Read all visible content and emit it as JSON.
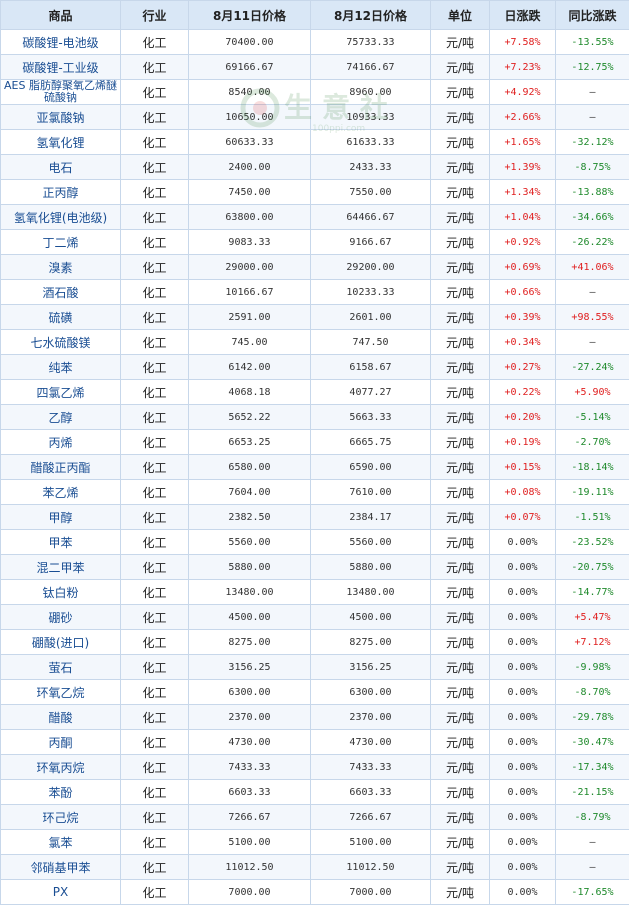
{
  "headers": {
    "name": "商品",
    "industry": "行业",
    "price_day1": "8月11日价格",
    "price_day2": "8月12日价格",
    "unit": "单位",
    "daily_change": "日涨跌",
    "yoy_change": "同比涨跌"
  },
  "watermark": {
    "text": "生意社",
    "url": "100ppi.com"
  },
  "colors": {
    "up": "#e02020",
    "down": "#1f8a2c",
    "header_bg": "#d9e7f6",
    "name_link": "#1a4e93"
  },
  "rows": [
    {
      "name": "碳酸锂-电池级",
      "industry": "化工",
      "p1": "70400.00",
      "p2": "75733.33",
      "unit": "元/吨",
      "daily": "+7.58%",
      "yoy": "-13.55%"
    },
    {
      "name": "碳酸锂-工业级",
      "industry": "化工",
      "p1": "69166.67",
      "p2": "74166.67",
      "unit": "元/吨",
      "daily": "+7.23%",
      "yoy": "-12.75%"
    },
    {
      "name": "AES 脂肪醇聚氧乙烯醚硫酸钠",
      "industry": "化工",
      "p1": "8540.00",
      "p2": "8960.00",
      "unit": "元/吨",
      "daily": "+4.92%",
      "yoy": "—"
    },
    {
      "name": "亚氯酸钠",
      "industry": "化工",
      "p1": "10650.00",
      "p2": "10933.33",
      "unit": "元/吨",
      "daily": "+2.66%",
      "yoy": "—"
    },
    {
      "name": "氢氧化锂",
      "industry": "化工",
      "p1": "60633.33",
      "p2": "61633.33",
      "unit": "元/吨",
      "daily": "+1.65%",
      "yoy": "-32.12%"
    },
    {
      "name": "电石",
      "industry": "化工",
      "p1": "2400.00",
      "p2": "2433.33",
      "unit": "元/吨",
      "daily": "+1.39%",
      "yoy": "-8.75%"
    },
    {
      "name": "正丙醇",
      "industry": "化工",
      "p1": "7450.00",
      "p2": "7550.00",
      "unit": "元/吨",
      "daily": "+1.34%",
      "yoy": "-13.88%"
    },
    {
      "name": "氢氧化锂(电池级)",
      "industry": "化工",
      "p1": "63800.00",
      "p2": "64466.67",
      "unit": "元/吨",
      "daily": "+1.04%",
      "yoy": "-34.66%"
    },
    {
      "name": "丁二烯",
      "industry": "化工",
      "p1": "9083.33",
      "p2": "9166.67",
      "unit": "元/吨",
      "daily": "+0.92%",
      "yoy": "-26.22%"
    },
    {
      "name": "溴素",
      "industry": "化工",
      "p1": "29000.00",
      "p2": "29200.00",
      "unit": "元/吨",
      "daily": "+0.69%",
      "yoy": "+41.06%"
    },
    {
      "name": "酒石酸",
      "industry": "化工",
      "p1": "10166.67",
      "p2": "10233.33",
      "unit": "元/吨",
      "daily": "+0.66%",
      "yoy": "—"
    },
    {
      "name": "硫磺",
      "industry": "化工",
      "p1": "2591.00",
      "p2": "2601.00",
      "unit": "元/吨",
      "daily": "+0.39%",
      "yoy": "+98.55%"
    },
    {
      "name": "七水硫酸镁",
      "industry": "化工",
      "p1": "745.00",
      "p2": "747.50",
      "unit": "元/吨",
      "daily": "+0.34%",
      "yoy": "—"
    },
    {
      "name": "纯苯",
      "industry": "化工",
      "p1": "6142.00",
      "p2": "6158.67",
      "unit": "元/吨",
      "daily": "+0.27%",
      "yoy": "-27.24%"
    },
    {
      "name": "四氯乙烯",
      "industry": "化工",
      "p1": "4068.18",
      "p2": "4077.27",
      "unit": "元/吨",
      "daily": "+0.22%",
      "yoy": "+5.90%"
    },
    {
      "name": "乙醇",
      "industry": "化工",
      "p1": "5652.22",
      "p2": "5663.33",
      "unit": "元/吨",
      "daily": "+0.20%",
      "yoy": "-5.14%"
    },
    {
      "name": "丙烯",
      "industry": "化工",
      "p1": "6653.25",
      "p2": "6665.75",
      "unit": "元/吨",
      "daily": "+0.19%",
      "yoy": "-2.70%"
    },
    {
      "name": "醋酸正丙酯",
      "industry": "化工",
      "p1": "6580.00",
      "p2": "6590.00",
      "unit": "元/吨",
      "daily": "+0.15%",
      "yoy": "-18.14%"
    },
    {
      "name": "苯乙烯",
      "industry": "化工",
      "p1": "7604.00",
      "p2": "7610.00",
      "unit": "元/吨",
      "daily": "+0.08%",
      "yoy": "-19.11%"
    },
    {
      "name": "甲醇",
      "industry": "化工",
      "p1": "2382.50",
      "p2": "2384.17",
      "unit": "元/吨",
      "daily": "+0.07%",
      "yoy": "-1.51%"
    },
    {
      "name": "甲苯",
      "industry": "化工",
      "p1": "5560.00",
      "p2": "5560.00",
      "unit": "元/吨",
      "daily": "0.00%",
      "yoy": "-23.52%"
    },
    {
      "name": "混二甲苯",
      "industry": "化工",
      "p1": "5880.00",
      "p2": "5880.00",
      "unit": "元/吨",
      "daily": "0.00%",
      "yoy": "-20.75%"
    },
    {
      "name": "钛白粉",
      "industry": "化工",
      "p1": "13480.00",
      "p2": "13480.00",
      "unit": "元/吨",
      "daily": "0.00%",
      "yoy": "-14.77%"
    },
    {
      "name": "硼砂",
      "industry": "化工",
      "p1": "4500.00",
      "p2": "4500.00",
      "unit": "元/吨",
      "daily": "0.00%",
      "yoy": "+5.47%"
    },
    {
      "name": "硼酸(进口)",
      "industry": "化工",
      "p1": "8275.00",
      "p2": "8275.00",
      "unit": "元/吨",
      "daily": "0.00%",
      "yoy": "+7.12%"
    },
    {
      "name": "萤石",
      "industry": "化工",
      "p1": "3156.25",
      "p2": "3156.25",
      "unit": "元/吨",
      "daily": "0.00%",
      "yoy": "-9.98%"
    },
    {
      "name": "环氧乙烷",
      "industry": "化工",
      "p1": "6300.00",
      "p2": "6300.00",
      "unit": "元/吨",
      "daily": "0.00%",
      "yoy": "-8.70%"
    },
    {
      "name": "醋酸",
      "industry": "化工",
      "p1": "2370.00",
      "p2": "2370.00",
      "unit": "元/吨",
      "daily": "0.00%",
      "yoy": "-29.78%"
    },
    {
      "name": "丙酮",
      "industry": "化工",
      "p1": "4730.00",
      "p2": "4730.00",
      "unit": "元/吨",
      "daily": "0.00%",
      "yoy": "-30.47%"
    },
    {
      "name": "环氧丙烷",
      "industry": "化工",
      "p1": "7433.33",
      "p2": "7433.33",
      "unit": "元/吨",
      "daily": "0.00%",
      "yoy": "-17.34%"
    },
    {
      "name": "苯酚",
      "industry": "化工",
      "p1": "6603.33",
      "p2": "6603.33",
      "unit": "元/吨",
      "daily": "0.00%",
      "yoy": "-21.15%"
    },
    {
      "name": "环己烷",
      "industry": "化工",
      "p1": "7266.67",
      "p2": "7266.67",
      "unit": "元/吨",
      "daily": "0.00%",
      "yoy": "-8.79%"
    },
    {
      "name": "氯苯",
      "industry": "化工",
      "p1": "5100.00",
      "p2": "5100.00",
      "unit": "元/吨",
      "daily": "0.00%",
      "yoy": "—"
    },
    {
      "name": "邻硝基甲苯",
      "industry": "化工",
      "p1": "11012.50",
      "p2": "11012.50",
      "unit": "元/吨",
      "daily": "0.00%",
      "yoy": "—"
    },
    {
      "name": "PX",
      "industry": "化工",
      "p1": "7000.00",
      "p2": "7000.00",
      "unit": "元/吨",
      "daily": "0.00%",
      "yoy": "-17.65%"
    }
  ]
}
